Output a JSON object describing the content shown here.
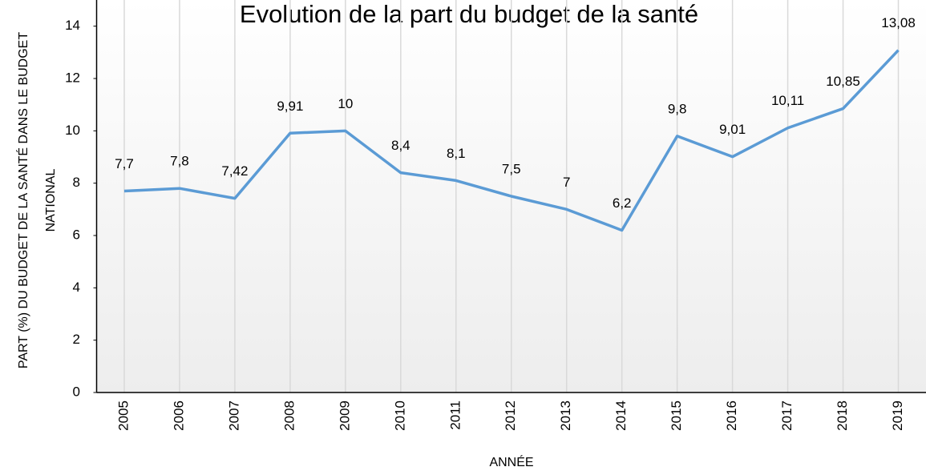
{
  "chart_data": {
    "type": "line",
    "title": "Evolution de la part du budget de la santé",
    "x_label": "ANNÉE",
    "y_label": [
      "PART (%) DU BUDGET DE LA SANTÉ DANS LE BUDGET",
      "NATIONAL"
    ],
    "categories": [
      "2005",
      "2006",
      "2007",
      "2008",
      "2009",
      "2010",
      "2011",
      "2012",
      "2013",
      "2014",
      "2015",
      "2016",
      "2017",
      "2018",
      "2019"
    ],
    "series": [
      {
        "name": "Part du budget de la santé",
        "color": "#5b9bd5",
        "values": [
          7.7,
          7.8,
          7.42,
          9.91,
          10,
          8.4,
          8.1,
          7.5,
          7,
          6.2,
          9.8,
          9.01,
          10.11,
          10.85,
          13.08
        ],
        "value_labels": [
          "7,7",
          "7,8",
          "7,42",
          "9,91",
          "10",
          "8,4",
          "8,1",
          "7,5",
          "7",
          "6,2",
          "9,8",
          "9,01",
          "10,11",
          "10,85",
          "13,08"
        ]
      }
    ],
    "ylim": [
      0,
      15
    ],
    "yticks": [
      0,
      2,
      4,
      6,
      8,
      10,
      12,
      14
    ]
  }
}
